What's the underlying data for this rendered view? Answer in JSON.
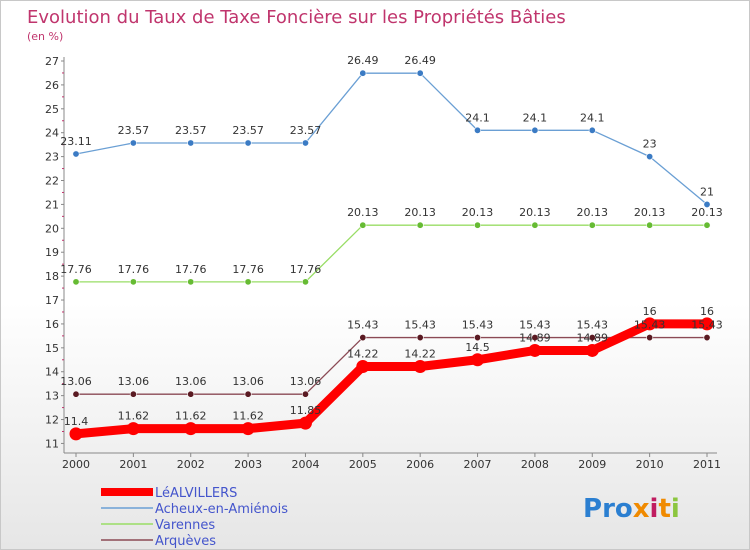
{
  "title": "Evolution du Taux de Taxe Foncière sur les Propriétés Bâties",
  "subtitle": "(en %)",
  "logo": [
    "P",
    "r",
    "o",
    "x",
    "i",
    "t",
    "i"
  ],
  "logo_colors": [
    "#2b7fd1",
    "#2b7fd1",
    "#2b7fd1",
    "#f08a00",
    "#c01d60",
    "#f08a00",
    "#8cc63f"
  ],
  "chart_data": {
    "type": "line",
    "title": "Evolution du Taux de Taxe Foncière sur les Propriétés Bâties",
    "ylabel": "(en %)",
    "xlabel": "",
    "x": [
      "2000",
      "2001",
      "2002",
      "2003",
      "2004",
      "2005",
      "2006",
      "2007",
      "2008",
      "2009",
      "2010",
      "2011"
    ],
    "ylim": [
      10.6,
      27
    ],
    "yticks": [
      11,
      12,
      13,
      14,
      15,
      16,
      17,
      18,
      19,
      20,
      21,
      22,
      23,
      24,
      25,
      26,
      27
    ],
    "grid": false,
    "legend": "bottom-left",
    "series": [
      {
        "name": "Acheux-en-Amiénois",
        "color": "#6a9fd4",
        "marker": "#3b7bc4",
        "values": [
          23.11,
          23.57,
          23.57,
          23.57,
          23.57,
          26.49,
          26.49,
          24.1,
          24.1,
          24.1,
          23,
          21
        ],
        "labels": [
          "23.11",
          "23.57",
          "23.57",
          "23.57",
          "23.57",
          "26.49",
          "26.49",
          "24.1",
          "24.1",
          "24.1",
          "23",
          "21"
        ]
      },
      {
        "name": "Varennes",
        "color": "#99dd66",
        "marker": "#66bb33",
        "values": [
          17.76,
          17.76,
          17.76,
          17.76,
          17.76,
          20.13,
          20.13,
          20.13,
          20.13,
          20.13,
          20.13,
          20.13
        ],
        "labels": [
          "17.76",
          "17.76",
          "17.76",
          "17.76",
          "17.76",
          "20.13",
          "20.13",
          "20.13",
          "20.13",
          "20.13",
          "20.13",
          "20.13"
        ]
      },
      {
        "name": "Arquèves",
        "color": "#8b4a55",
        "marker": "#5a1a22",
        "values": [
          13.06,
          13.06,
          13.06,
          13.06,
          13.06,
          15.43,
          15.43,
          15.43,
          15.43,
          15.43,
          15.43,
          15.43
        ],
        "labels": [
          "13.06",
          "13.06",
          "13.06",
          "13.06",
          "13.06",
          "15.43",
          "15.43",
          "15.43",
          "15.43",
          "15.43",
          "15.43",
          "15.43"
        ]
      },
      {
        "name": "LéALVILLERS",
        "color": "#ff0000",
        "marker": "#ff0000",
        "values": [
          11.4,
          11.62,
          11.62,
          11.62,
          11.85,
          14.22,
          14.22,
          14.5,
          14.89,
          14.89,
          16,
          16
        ],
        "labels": [
          "11.4",
          "11.62",
          "11.62",
          "11.62",
          "11.85",
          "14.22",
          "14.22",
          "14.5",
          "14.89",
          "14.89",
          "16",
          "16"
        ]
      }
    ],
    "legend_order": [
      "LéALVILLERS",
      "Acheux-en-Amiénois",
      "Varennes",
      "Arquèves"
    ]
  }
}
